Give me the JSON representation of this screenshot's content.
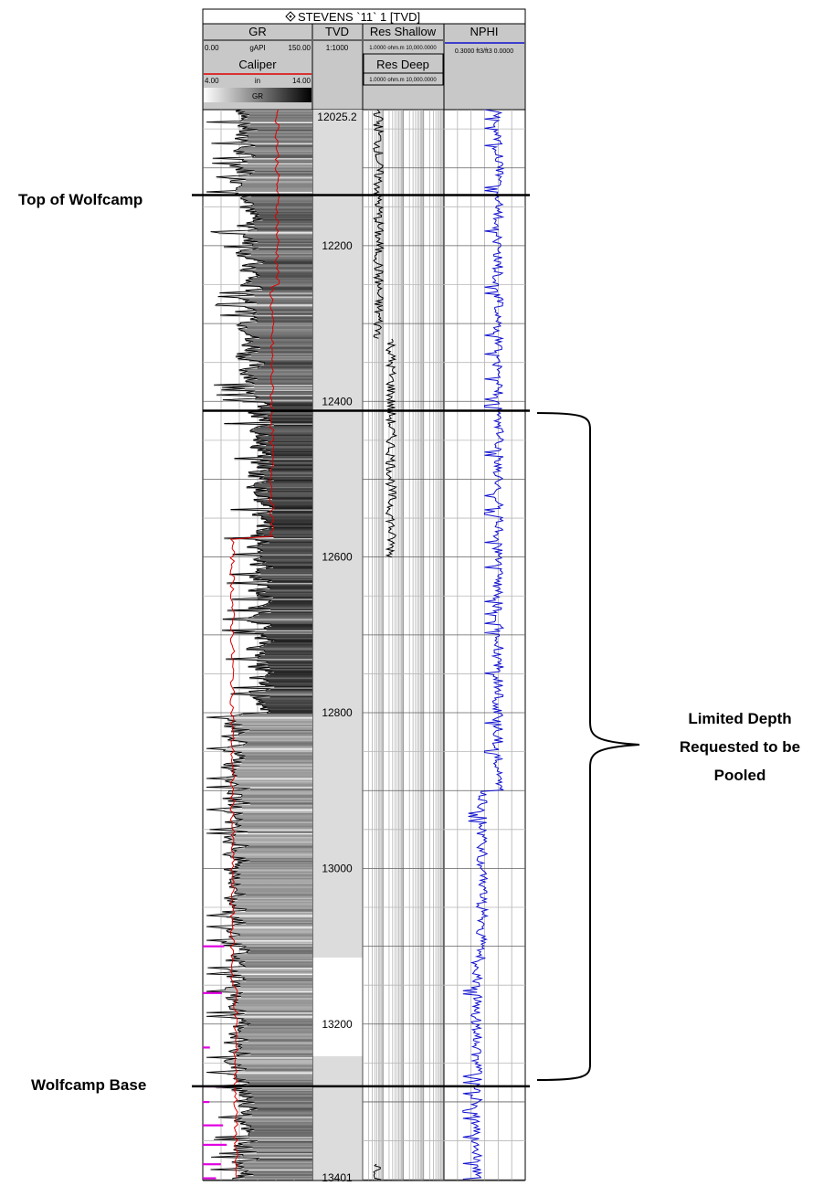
{
  "colors": {
    "header_bg": "#c8c8c8",
    "gr_curve": "#000000",
    "caliper_curve": "#e00000",
    "nphi_curve": "#1010d0",
    "res_curve": "#000000",
    "marker_magenta": "#e000e0",
    "tvd_track_bg": "#dcdcdc"
  },
  "header": {
    "title": "STEVENS `11` 1 [TVD]",
    "title_icon": "diamond-target-icon",
    "gr": {
      "name": "GR",
      "min": "0.00",
      "unit": "gAPI",
      "max": "150.00"
    },
    "caliper": {
      "name": "Caliper",
      "min": "4.00",
      "unit": "in",
      "max": "14.00"
    },
    "gr_fill_label": "GR",
    "tvd": {
      "name": "TVD",
      "scale": "1:1000"
    },
    "res_shallow": {
      "name": "Res Shallow",
      "range": "1.0000 ohm.m 10,000.0000"
    },
    "res_deep": {
      "name": "Res Deep",
      "range": "1.0000 ohm.m 10,000.0000"
    },
    "nphi": {
      "name": "NPHI",
      "range": "0.3000 ft3/ft3 0.0000"
    }
  },
  "annotations": {
    "top_label": "Top of Wolfcamp",
    "base_label": "Wolfcamp Base",
    "interval_line1": "Limited Depth",
    "interval_line2": "Requested to be",
    "interval_line3": "Pooled"
  },
  "chart_data": {
    "type": "line",
    "title": "STEVENS `11` 1 [TVD]",
    "depth_axis": {
      "label": "TVD",
      "top_label": "12025.2",
      "bottom_label": "13401",
      "range": [
        12025.2,
        13401
      ],
      "ticks": [
        12200,
        12400,
        12600,
        12800,
        13000,
        13200
      ]
    },
    "markers": [
      {
        "name": "Top of Wolfcamp",
        "depth": 12135
      },
      {
        "name": "Wolfcamp Base",
        "depth": 13280
      }
    ],
    "pooled_interval": {
      "top": 12412,
      "bottom": 13280
    },
    "gr_segments": [
      {
        "from": 12025,
        "to": 12135,
        "gr": 55
      },
      {
        "from": 12135,
        "to": 12400,
        "gr": 65
      },
      {
        "from": 12400,
        "to": 12800,
        "gr": 80
      },
      {
        "from": 12800,
        "to": 13280,
        "gr": 45
      },
      {
        "from": 13280,
        "to": 13401,
        "gr": 60
      }
    ],
    "caliper_segments": [
      {
        "from": 12025,
        "to": 12250,
        "caliper": 10.8
      },
      {
        "from": 12250,
        "to": 12575,
        "caliper": 10.3
      },
      {
        "from": 12575,
        "to": 13150,
        "caliper": 6.7
      },
      {
        "from": 13150,
        "to": 13401,
        "caliper": 7.0
      }
    ],
    "res_segments": [
      {
        "from": 12025,
        "to": 12320,
        "res": 6
      },
      {
        "from": 12320,
        "to": 12600,
        "res": 25
      },
      {
        "from": 13380,
        "to": 13401,
        "res": 6
      }
    ],
    "nphi_segments": [
      {
        "from": 12025,
        "to": 12900,
        "nphi": 0.1
      },
      {
        "from": 12900,
        "to": 13120,
        "nphi": 0.16
      },
      {
        "from": 13120,
        "to": 13401,
        "nphi": 0.18
      }
    ]
  }
}
